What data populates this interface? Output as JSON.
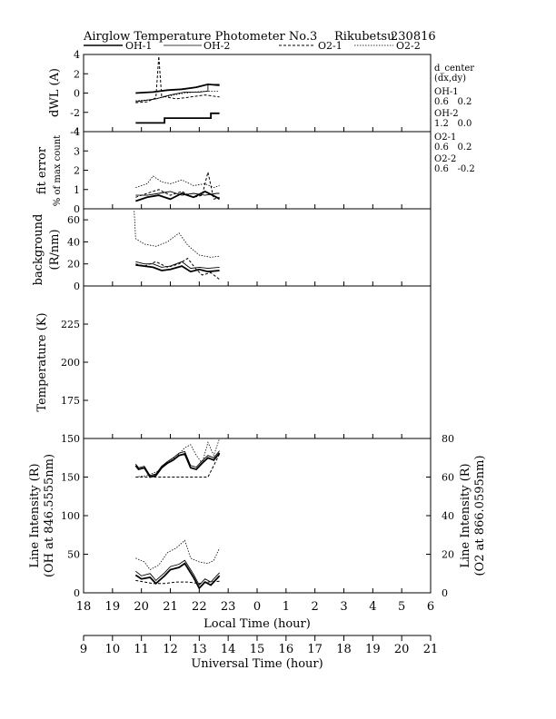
{
  "header": {
    "title": "Airglow Temperature Photometer No.3",
    "station": "Rikubetsu",
    "date": "230816"
  },
  "legend": [
    {
      "name": "OH-1",
      "style": "solid-thick"
    },
    {
      "name": "OH-2",
      "style": "solid-thin"
    },
    {
      "name": "O2-1",
      "style": "dashed"
    },
    {
      "name": "O2-2",
      "style": "dotted"
    }
  ],
  "side_info": {
    "title": "d_center",
    "subtitle": "(dx,dy)",
    "entries": [
      {
        "name": "OH-1",
        "value": "0.6   0.2"
      },
      {
        "name": "OH-2",
        "value": "1.2   0.0"
      },
      {
        "name": "O2-1",
        "value": "0.6   0.2"
      },
      {
        "name": "O2-2",
        "value": "0.6   -0.2"
      }
    ]
  },
  "axes": {
    "local_time": {
      "label": "Local Time (hour)",
      "ticks": [
        "18",
        "19",
        "20",
        "21",
        "22",
        "23",
        "0",
        "1",
        "2",
        "3",
        "4",
        "5",
        "6"
      ]
    },
    "universal_time": {
      "label": "Universal Time (hour)",
      "ticks": [
        "9",
        "10",
        "11",
        "12",
        "13",
        "14",
        "15",
        "16",
        "17",
        "18",
        "19",
        "20",
        "21"
      ]
    }
  },
  "chart_data": [
    {
      "type": "line",
      "panel": "dwl",
      "ylabel": "dWL (A)",
      "ylim": [
        -4,
        4
      ],
      "yticks": [
        "4",
        "2",
        "0",
        "-2",
        "-4"
      ],
      "x_unit": "local time (hour)",
      "series": [
        {
          "name": "OH-1",
          "x": [
            19.8,
            20.4,
            20.9,
            21.4,
            21.9,
            22.3,
            22.7
          ],
          "y": [
            0.0,
            0.1,
            0.3,
            0.4,
            0.6,
            0.9,
            0.8
          ]
        },
        {
          "name": "OH-1b",
          "x": [
            19.8,
            20.8,
            20.8,
            22.4,
            22.4,
            22.7
          ],
          "y": [
            -3.1,
            -3.1,
            -2.6,
            -2.6,
            -2.1,
            -2.1
          ]
        },
        {
          "name": "OH-2",
          "x": [
            19.8,
            20.5,
            21.0,
            21.5,
            22.0,
            22.3,
            22.3,
            22.7
          ],
          "y": [
            -0.9,
            -0.6,
            -0.2,
            0.1,
            0.1,
            0.2,
            0.9,
            0.9
          ]
        },
        {
          "name": "O2-1",
          "x": [
            19.8,
            20.2,
            20.5,
            20.6,
            20.7,
            21.2,
            21.7,
            22.2,
            22.7
          ],
          "y": [
            -1.0,
            -0.9,
            -0.5,
            3.8,
            -0.3,
            -0.6,
            -0.4,
            -0.2,
            -0.4
          ]
        },
        {
          "name": "O2-2",
          "x": [
            19.8,
            20.3,
            20.8,
            21.3,
            21.8,
            22.3,
            22.7
          ],
          "y": [
            -0.8,
            -0.7,
            -0.4,
            -0.1,
            0.1,
            0.2,
            0.2
          ]
        }
      ]
    },
    {
      "type": "line",
      "panel": "fit_error",
      "ylabel": "fit error",
      "ylabel2": "% of max count",
      "ylim": [
        0,
        4
      ],
      "yticks": [
        "4",
        "3",
        "2",
        "1",
        "0"
      ],
      "series": [
        {
          "name": "OH-1",
          "x": [
            19.8,
            20.2,
            20.6,
            21.0,
            21.4,
            21.8,
            22.2,
            22.6,
            22.7
          ],
          "y": [
            0.4,
            0.6,
            0.7,
            0.5,
            0.8,
            0.6,
            0.9,
            0.6,
            0.5
          ]
        },
        {
          "name": "OH-2",
          "x": [
            19.8,
            20.2,
            20.6,
            21.0,
            21.4,
            21.8,
            22.2,
            22.6,
            22.7
          ],
          "y": [
            0.7,
            0.7,
            0.8,
            0.9,
            0.7,
            0.8,
            0.7,
            0.8,
            0.8
          ]
        },
        {
          "name": "O2-1",
          "x": [
            19.8,
            20.2,
            20.6,
            21.0,
            21.4,
            21.8,
            22.1,
            22.3,
            22.5,
            22.7
          ],
          "y": [
            0.6,
            0.8,
            1.0,
            0.7,
            0.9,
            0.6,
            0.7,
            1.9,
            0.5,
            0.6
          ]
        },
        {
          "name": "O2-2",
          "x": [
            19.8,
            20.2,
            20.4,
            20.7,
            21.0,
            21.4,
            21.8,
            22.2,
            22.5,
            22.7
          ],
          "y": [
            1.1,
            1.3,
            1.7,
            1.4,
            1.3,
            1.5,
            1.2,
            1.3,
            1.1,
            1.2
          ]
        }
      ]
    },
    {
      "type": "line",
      "panel": "background",
      "ylabel": "background",
      "ylabel2": "(R/nm)",
      "ylim": [
        0,
        70
      ],
      "yticks": [
        "60",
        "40",
        "20",
        "0"
      ],
      "series": [
        {
          "name": "OH-1",
          "x": [
            19.8,
            20.1,
            20.4,
            20.7,
            21.0,
            21.4,
            21.7,
            22.0,
            22.3,
            22.7
          ],
          "y": [
            19,
            18,
            17,
            14,
            15,
            18,
            13,
            15,
            13,
            14
          ]
        },
        {
          "name": "OH-2",
          "x": [
            19.8,
            20.1,
            20.4,
            20.7,
            21.0,
            21.4,
            21.7,
            22.0,
            22.3,
            22.7
          ],
          "y": [
            22,
            20,
            20,
            17,
            18,
            22,
            16,
            17,
            16,
            17
          ]
        },
        {
          "name": "O2-1",
          "x": [
            19.8,
            20.1,
            20.5,
            20.9,
            21.3,
            21.6,
            21.9,
            22.1,
            22.4,
            22.7
          ],
          "y": [
            20,
            18,
            22,
            17,
            20,
            25,
            15,
            10,
            12,
            6
          ]
        },
        {
          "name": "O2-2",
          "x": [
            19.75,
            19.8,
            20.1,
            20.5,
            20.9,
            21.3,
            21.6,
            22.0,
            22.4,
            22.7
          ],
          "y": [
            68,
            43,
            38,
            36,
            40,
            48,
            37,
            28,
            26,
            27
          ]
        }
      ]
    },
    {
      "type": "line",
      "panel": "temperature",
      "ylabel": "Temperature (K)",
      "ylim": [
        150,
        250
      ],
      "yticks": [
        "225",
        "200",
        "175",
        "150"
      ],
      "series": []
    },
    {
      "type": "line",
      "panel": "intensity",
      "ylabel": "Line Intensity (R)",
      "ylabel2": "(OH at 846.5555nm)",
      "ylabel_right": "Line Intensity (R)",
      "ylabel_right2": "(O2 at 866.0595nm)",
      "ylim": [
        0,
        200
      ],
      "ylim_right": [
        0,
        80
      ],
      "yticks": [
        "150",
        "100",
        "50",
        "0"
      ],
      "yticks_right": [
        "80",
        "60",
        "40",
        "20",
        "0"
      ],
      "series": [
        {
          "name": "OH-1",
          "x": [
            19.8,
            20.0,
            20.3,
            20.5,
            20.8,
            21.0,
            21.3,
            21.5,
            21.8,
            22.0,
            22.2,
            22.4,
            22.7
          ],
          "y": [
            23,
            18,
            20,
            12,
            22,
            30,
            33,
            38,
            20,
            6,
            14,
            10,
            22
          ]
        },
        {
          "name": "OH-2",
          "x": [
            19.8,
            20.0,
            20.3,
            20.5,
            20.8,
            21.0,
            21.3,
            21.5,
            21.8,
            22.0,
            22.2,
            22.4,
            22.7
          ],
          "y": [
            28,
            22,
            25,
            16,
            26,
            34,
            37,
            42,
            24,
            10,
            18,
            14,
            26
          ]
        },
        {
          "name": "O2-1",
          "x": [
            19.8,
            20.1,
            20.4,
            20.8,
            21.2,
            21.6,
            22.0,
            22.3,
            22.7
          ],
          "y": [
            16,
            14,
            12,
            12,
            14,
            14,
            12,
            14,
            15
          ]
        },
        {
          "name": "O2-2",
          "x": [
            19.8,
            20.1,
            20.3,
            20.6,
            20.9,
            21.2,
            21.5,
            21.7,
            22.0,
            22.3,
            22.5,
            22.7
          ],
          "y": [
            45,
            40,
            30,
            36,
            52,
            58,
            68,
            45,
            40,
            38,
            42,
            58
          ]
        },
        {
          "name": "OH-1 upper",
          "x": [
            19.8,
            19.9,
            20.1,
            20.3,
            20.5,
            20.7,
            20.9,
            21.1,
            21.3,
            21.5,
            21.7,
            21.9,
            22.1,
            22.3,
            22.5,
            22.7
          ],
          "y": [
            165,
            160,
            162,
            150,
            152,
            162,
            168,
            172,
            178,
            180,
            162,
            160,
            168,
            175,
            172,
            181
          ]
        },
        {
          "name": "OH-2 upper",
          "x": [
            19.8,
            19.9,
            20.1,
            20.3,
            20.5,
            20.7,
            20.9,
            21.1,
            21.3,
            21.5,
            21.7,
            21.9,
            22.1,
            22.3,
            22.5,
            22.7
          ],
          "y": [
            167,
            162,
            164,
            152,
            154,
            164,
            170,
            175,
            181,
            183,
            165,
            163,
            171,
            178,
            175,
            184
          ]
        },
        {
          "name": "O2-1 upper",
          "x": [
            19.8,
            20.3,
            20.8,
            21.3,
            21.8,
            22.3,
            22.5,
            22.7
          ],
          "y": [
            150,
            150,
            150,
            150,
            150,
            150,
            165,
            180
          ]
        },
        {
          "name": "O2-2 upper",
          "x": [
            19.8,
            20.2,
            20.6,
            20.9,
            21.2,
            21.5,
            21.7,
            21.9,
            22.1,
            22.3,
            22.5,
            22.7
          ],
          "y": [
            150,
            152,
            158,
            170,
            176,
            188,
            192,
            178,
            168,
            195,
            178,
            200
          ]
        }
      ]
    }
  ]
}
